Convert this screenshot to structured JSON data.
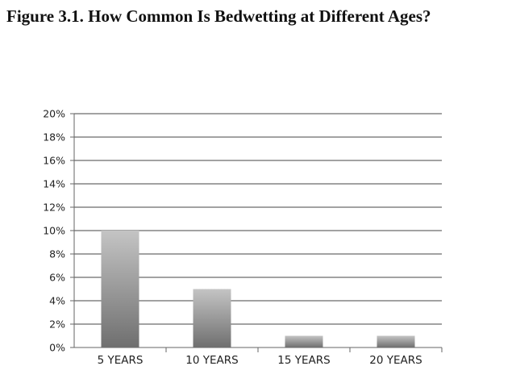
{
  "figure": {
    "title": "Figure 3.1. How Common Is Bedwetting at Different Ages?"
  },
  "chart_data": {
    "type": "bar",
    "title": "",
    "xlabel": "",
    "ylabel": "",
    "categories": [
      "5 YEARS",
      "10 YEARS",
      "15 YEARS",
      "20 YEARS"
    ],
    "values": [
      10,
      5,
      1,
      1
    ],
    "unit": "%",
    "ylim": [
      0,
      20
    ],
    "yticks": [
      "0%",
      "2%",
      "4%",
      "6%",
      "8%",
      "10%",
      "12%",
      "14%",
      "16%",
      "18%",
      "20%"
    ],
    "grid": true,
    "legend": "none",
    "colors": {
      "bar_top": "#c4c4c4",
      "bar_bottom": "#6f6f6f",
      "grid": "#444444",
      "axis": "#666666"
    }
  }
}
